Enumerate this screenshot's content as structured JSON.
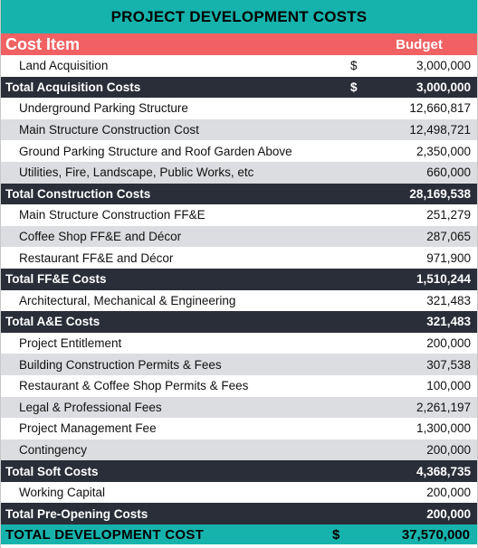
{
  "title": "PROJECT DEVELOPMENT COSTS",
  "header": {
    "cost_item": "Cost Item",
    "budget": "Budget"
  },
  "colors": {
    "teal": "#16b3ad",
    "coral": "#f16163",
    "dark": "#2a2e38",
    "grey_band": "#dcdde0"
  },
  "rows": [
    {
      "type": "item",
      "label": "Land Acquisition",
      "currency": "$",
      "value": "3,000,000"
    },
    {
      "type": "total",
      "label": "Total Acquisition Costs",
      "currency": "$",
      "value": "3,000,000"
    },
    {
      "type": "item",
      "label": "Underground Parking Structure",
      "currency": "",
      "value": "12,660,817"
    },
    {
      "type": "item",
      "label": "Main Structure Construction Cost",
      "currency": "",
      "value": "12,498,721"
    },
    {
      "type": "item",
      "label": "Ground Parking Structure and Roof Garden Above",
      "currency": "",
      "value": "2,350,000"
    },
    {
      "type": "item",
      "label": "Utilities, Fire, Landscape, Public Works, etc",
      "currency": "",
      "value": "660,000"
    },
    {
      "type": "total",
      "label": "Total Construction Costs",
      "currency": "",
      "value": "28,169,538"
    },
    {
      "type": "item",
      "label": "Main Structure Construction FF&E",
      "currency": "",
      "value": "251,279"
    },
    {
      "type": "item",
      "label": "Coffee Shop FF&E and Décor",
      "currency": "",
      "value": "287,065"
    },
    {
      "type": "item",
      "label": "Restaurant FF&E and Décor",
      "currency": "",
      "value": "971,900"
    },
    {
      "type": "total",
      "label": "Total FF&E Costs",
      "currency": "",
      "value": "1,510,244"
    },
    {
      "type": "item",
      "label": "Architectural, Mechanical & Engineering",
      "currency": "",
      "value": "321,483"
    },
    {
      "type": "total",
      "label": "Total A&E Costs",
      "currency": "",
      "value": "321,483"
    },
    {
      "type": "item",
      "label": "Project Entitlement",
      "currency": "",
      "value": "200,000"
    },
    {
      "type": "item",
      "label": "Building Construction Permits & Fees",
      "currency": "",
      "value": "307,538"
    },
    {
      "type": "item",
      "label": "Restaurant & Coffee Shop Permits & Fees",
      "currency": "",
      "value": "100,000"
    },
    {
      "type": "item",
      "label": "Legal & Professional Fees",
      "currency": "",
      "value": "2,261,197"
    },
    {
      "type": "item",
      "label": "Project Management Fee",
      "currency": "",
      "value": "1,300,000"
    },
    {
      "type": "item",
      "label": "Contingency",
      "currency": "",
      "value": "200,000"
    },
    {
      "type": "total",
      "label": "Total Soft Costs",
      "currency": "",
      "value": "4,368,735"
    },
    {
      "type": "item",
      "label": "Working Capital",
      "currency": "",
      "value": "200,000"
    },
    {
      "type": "total",
      "label": "Total Pre-Opening Costs",
      "currency": "",
      "value": "200,000"
    }
  ],
  "grand_total": {
    "label": "TOTAL DEVELOPMENT COST",
    "currency": "$",
    "value": "37,570,000"
  }
}
